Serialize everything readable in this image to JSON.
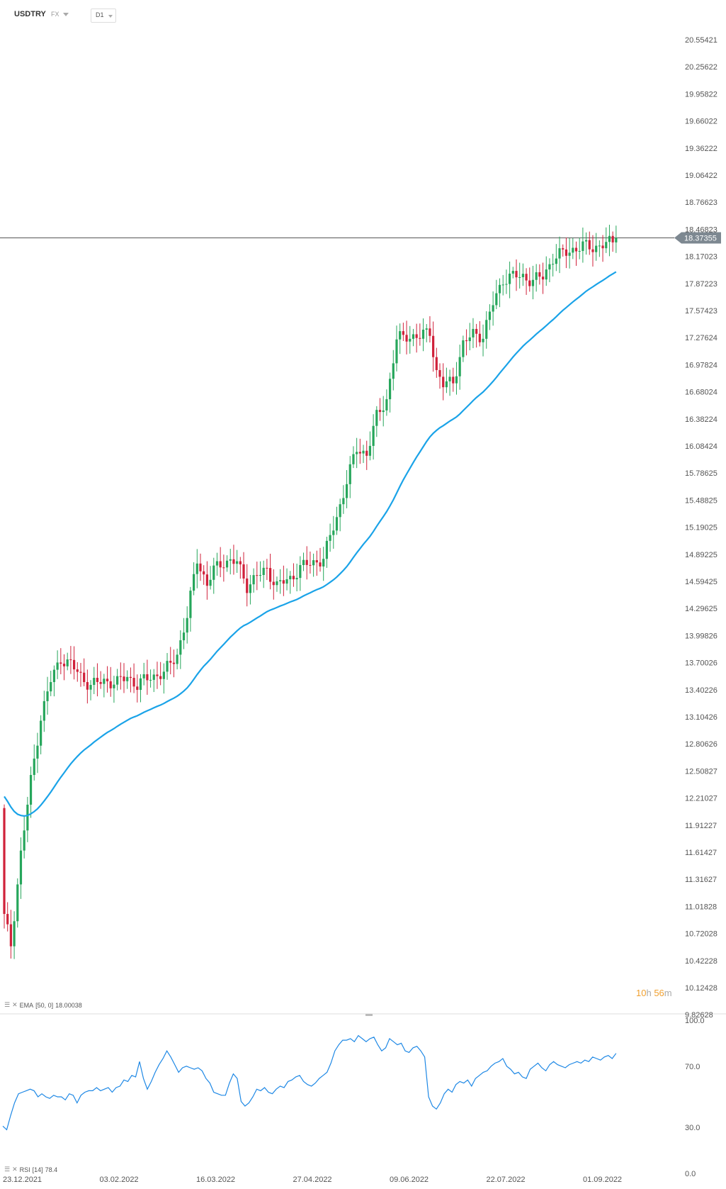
{
  "header": {
    "symbol": "USDTRY",
    "type": "FX",
    "timeframe": "D1"
  },
  "price_panel": {
    "current_price": "18.37355",
    "countdown": {
      "hours": "10",
      "h_unit": "h",
      "minutes": "56",
      "m_unit": "m"
    },
    "legend": {
      "name": "EMA",
      "params": "[50, 0]",
      "value": "18.00038"
    }
  },
  "rsi_panel": {
    "legend": {
      "name": "RSI",
      "params": "[14]",
      "value": "78.4"
    }
  },
  "colors": {
    "up": "#26a65b",
    "down": "#d0213a",
    "ema": "#1aa3e8",
    "rsi": "#1e88e5",
    "price_line": "#555555"
  },
  "chart_data": [
    {
      "type": "candlestick",
      "series_name": "USDTRY",
      "price_ticks": [
        "20.55421",
        "20.25622",
        "19.95822",
        "19.66022",
        "19.36222",
        "19.06422",
        "18.76623",
        "18.46823",
        "18.17023",
        "17.87223",
        "17.57423",
        "17.27624",
        "16.97824",
        "16.68024",
        "16.38224",
        "16.08424",
        "15.78625",
        "15.48825",
        "15.19025",
        "14.89225",
        "14.59425",
        "14.29625",
        "13.99826",
        "13.70026",
        "13.40226",
        "13.10426",
        "12.80626",
        "12.50827",
        "12.21027",
        "11.91227",
        "11.61427",
        "11.31627",
        "11.01828",
        "10.72028",
        "10.42228",
        "10.12428",
        "9.82628"
      ],
      "x_ticks": [
        "23.12.2021",
        "03.02.2022",
        "16.03.2022",
        "27.04.2022",
        "09.06.2022",
        "22.07.2022",
        "01.09.2022"
      ],
      "close_anchors": [
        [
          0,
          10.9
        ],
        [
          2,
          10.6
        ],
        [
          5,
          11.6
        ],
        [
          8,
          12.4
        ],
        [
          11,
          13.1
        ],
        [
          14,
          13.5
        ],
        [
          17,
          13.75
        ],
        [
          20,
          13.68
        ],
        [
          23,
          13.55
        ],
        [
          26,
          13.45
        ],
        [
          30,
          13.5
        ],
        [
          34,
          13.48
        ],
        [
          37,
          13.55
        ],
        [
          40,
          13.45
        ],
        [
          44,
          13.55
        ],
        [
          48,
          13.58
        ],
        [
          52,
          13.8
        ],
        [
          55,
          14.2
        ],
        [
          58,
          14.85
        ],
        [
          61,
          14.55
        ],
        [
          63,
          14.72
        ],
        [
          66,
          14.82
        ],
        [
          70,
          14.8
        ],
        [
          73,
          14.55
        ],
        [
          76,
          14.65
        ],
        [
          79,
          14.72
        ],
        [
          82,
          14.55
        ],
        [
          86,
          14.62
        ],
        [
          89,
          14.75
        ],
        [
          93,
          14.8
        ],
        [
          96,
          14.85
        ],
        [
          100,
          15.3
        ],
        [
          103,
          15.7
        ],
        [
          106,
          16.05
        ],
        [
          109,
          16.0
        ],
        [
          112,
          16.4
        ],
        [
          115,
          16.6
        ],
        [
          118,
          17.25
        ],
        [
          121,
          17.3
        ],
        [
          125,
          17.28
        ],
        [
          128,
          17.35
        ],
        [
          130,
          16.9
        ],
        [
          132,
          16.75
        ],
        [
          135,
          16.8
        ],
        [
          138,
          17.2
        ],
        [
          141,
          17.32
        ],
        [
          144,
          17.3
        ],
        [
          147,
          17.65
        ],
        [
          150,
          17.92
        ],
        [
          153,
          17.95
        ],
        [
          156,
          17.95
        ],
        [
          159,
          17.9
        ],
        [
          162,
          17.95
        ],
        [
          165,
          18.15
        ],
        [
          168,
          18.2
        ],
        [
          171,
          18.25
        ],
        [
          174,
          18.28
        ],
        [
          177,
          18.27
        ],
        [
          180,
          18.3
        ],
        [
          183,
          18.32
        ],
        [
          184,
          18.37355
        ]
      ],
      "ema_name": "EMA",
      "ema_params": "[50, 0]",
      "ema_last": 18.00038,
      "last_price": 18.37355
    },
    {
      "type": "line",
      "series_name": "RSI",
      "params": "[14]",
      "y_ticks": [
        "100.0",
        "70.0",
        "30.0",
        "0.0"
      ],
      "ylim": [
        0,
        100
      ],
      "last_value": 78.4,
      "values": [
        30.9,
        28.5,
        37.8,
        46,
        52,
        53,
        54,
        55,
        54,
        50,
        52,
        50,
        49,
        51,
        50,
        50,
        48,
        52,
        51,
        46,
        51,
        53,
        54,
        54,
        56,
        54,
        55,
        56,
        53,
        56,
        57,
        61,
        60,
        64,
        63,
        73,
        62,
        55,
        60,
        66,
        71,
        75,
        80,
        76,
        71,
        66,
        69,
        70,
        69,
        68,
        69,
        67,
        62,
        59,
        53,
        52,
        51,
        51,
        59,
        65,
        62,
        47,
        44,
        46,
        50,
        55,
        54,
        56,
        53,
        52,
        55,
        57,
        56,
        60,
        61,
        63,
        64,
        60,
        58,
        57,
        59,
        62,
        64,
        66,
        72,
        80,
        84,
        87,
        87,
        88,
        86,
        90,
        88,
        86,
        88,
        89,
        84,
        80,
        82,
        88,
        86,
        84,
        85,
        80,
        79,
        82,
        83,
        80,
        76,
        50,
        44,
        42,
        46,
        52,
        55,
        53,
        58,
        60,
        59,
        61,
        57,
        62,
        64,
        66,
        67,
        70,
        72,
        73,
        75,
        70,
        68,
        65,
        66,
        63,
        62,
        68,
        70,
        72,
        69,
        67,
        71,
        73,
        71,
        70,
        69,
        71,
        72,
        73,
        72,
        74,
        73,
        76,
        75,
        74,
        76,
        77,
        75,
        78.4
      ]
    }
  ]
}
